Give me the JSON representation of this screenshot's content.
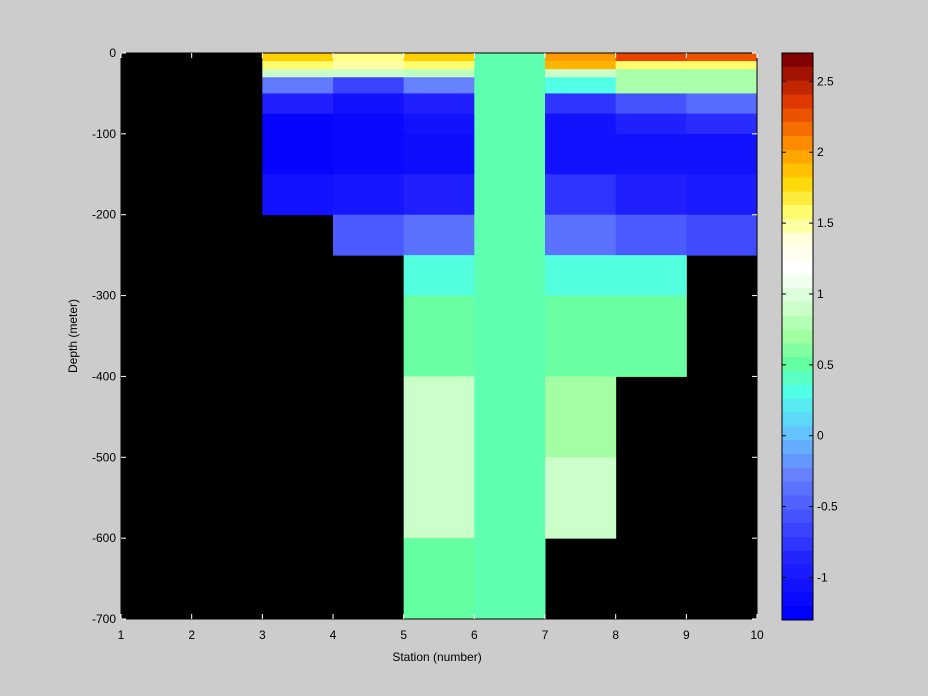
{
  "chart_data": {
    "type": "heatmap",
    "title": "",
    "xlabel": "Station (number)",
    "ylabel": "Depth (meter)",
    "xlim": [
      1,
      10
    ],
    "ylim": [
      -700,
      0
    ],
    "xticks": [
      1,
      2,
      3,
      4,
      5,
      6,
      7,
      8,
      9,
      10
    ],
    "yticks": [
      0,
      -100,
      -200,
      -300,
      -400,
      -500,
      -600,
      -700
    ],
    "background_color": "#000000",
    "grid": false,
    "colorbar": {
      "colormap": "jet-with-white-center",
      "range": [
        -1.3,
        2.7
      ],
      "ticks": [
        -1,
        -0.5,
        0,
        0.5,
        1,
        1.5,
        2,
        2.5
      ],
      "position": "right"
    },
    "cells": [
      {
        "x": [
          3,
          4
        ],
        "y": [
          -10,
          0
        ],
        "value": 1.85
      },
      {
        "x": [
          3,
          4
        ],
        "y": [
          -20,
          -10
        ],
        "value": 1.6
      },
      {
        "x": [
          3,
          4
        ],
        "y": [
          -30,
          -20
        ],
        "value": 0.9
      },
      {
        "x": [
          3,
          4
        ],
        "y": [
          -50,
          -30
        ],
        "value": -0.35
      },
      {
        "x": [
          3,
          4
        ],
        "y": [
          -75,
          -50
        ],
        "value": -0.95
      },
      {
        "x": [
          3,
          4
        ],
        "y": [
          -150,
          -75
        ],
        "value": -1.25
      },
      {
        "x": [
          3,
          4
        ],
        "y": [
          -200,
          -150
        ],
        "value": -1.1
      },
      {
        "x": [
          4,
          5
        ],
        "y": [
          -10,
          0
        ],
        "value": 1.55
      },
      {
        "x": [
          4,
          5
        ],
        "y": [
          -20,
          -10
        ],
        "value": 1.5
      },
      {
        "x": [
          4,
          5
        ],
        "y": [
          -30,
          -20
        ],
        "value": 0.9
      },
      {
        "x": [
          4,
          5
        ],
        "y": [
          -50,
          -30
        ],
        "value": -0.7
      },
      {
        "x": [
          4,
          5
        ],
        "y": [
          -75,
          -50
        ],
        "value": -1.1
      },
      {
        "x": [
          4,
          5
        ],
        "y": [
          -150,
          -75
        ],
        "value": -1.2
      },
      {
        "x": [
          4,
          5
        ],
        "y": [
          -200,
          -150
        ],
        "value": -1.05
      },
      {
        "x": [
          4,
          5
        ],
        "y": [
          -250,
          -200
        ],
        "value": -0.55
      },
      {
        "x": [
          5,
          6
        ],
        "y": [
          -10,
          0
        ],
        "value": 1.85
      },
      {
        "x": [
          5,
          6
        ],
        "y": [
          -20,
          -10
        ],
        "value": 1.6
      },
      {
        "x": [
          5,
          6
        ],
        "y": [
          -30,
          -20
        ],
        "value": 0.85
      },
      {
        "x": [
          5,
          6
        ],
        "y": [
          -50,
          -30
        ],
        "value": -0.3
      },
      {
        "x": [
          5,
          6
        ],
        "y": [
          -75,
          -50
        ],
        "value": -0.95
      },
      {
        "x": [
          5,
          6
        ],
        "y": [
          -100,
          -75
        ],
        "value": -1.1
      },
      {
        "x": [
          5,
          6
        ],
        "y": [
          -150,
          -100
        ],
        "value": -1.15
      },
      {
        "x": [
          5,
          6
        ],
        "y": [
          -200,
          -150
        ],
        "value": -0.95
      },
      {
        "x": [
          5,
          6
        ],
        "y": [
          -250,
          -200
        ],
        "value": -0.4
      },
      {
        "x": [
          5,
          6
        ],
        "y": [
          -300,
          -250
        ],
        "value": 0.32
      },
      {
        "x": [
          5,
          6
        ],
        "y": [
          -400,
          -300
        ],
        "value": 0.52
      },
      {
        "x": [
          5,
          6
        ],
        "y": [
          -600,
          -400
        ],
        "value": 0.9
      },
      {
        "x": [
          5,
          6
        ],
        "y": [
          -700,
          -600
        ],
        "value": 0.5
      },
      {
        "x": [
          6,
          7
        ],
        "y": [
          -700,
          0
        ],
        "value": 0.45
      },
      {
        "x": [
          7,
          8
        ],
        "y": [
          -10,
          0
        ],
        "value": 2.05
      },
      {
        "x": [
          7,
          8
        ],
        "y": [
          -20,
          -10
        ],
        "value": 1.95
      },
      {
        "x": [
          7,
          8
        ],
        "y": [
          -30,
          -20
        ],
        "value": 0.9
      },
      {
        "x": [
          7,
          8
        ],
        "y": [
          -50,
          -30
        ],
        "value": 0.3
      },
      {
        "x": [
          7,
          8
        ],
        "y": [
          -75,
          -50
        ],
        "value": -0.8
      },
      {
        "x": [
          7,
          8
        ],
        "y": [
          -100,
          -75
        ],
        "value": -1.1
      },
      {
        "x": [
          7,
          8
        ],
        "y": [
          -150,
          -100
        ],
        "value": -1.1
      },
      {
        "x": [
          7,
          8
        ],
        "y": [
          -200,
          -150
        ],
        "value": -0.8
      },
      {
        "x": [
          7,
          8
        ],
        "y": [
          -250,
          -200
        ],
        "value": -0.4
      },
      {
        "x": [
          7,
          8
        ],
        "y": [
          -300,
          -250
        ],
        "value": 0.32
      },
      {
        "x": [
          7,
          8
        ],
        "y": [
          -400,
          -300
        ],
        "value": 0.52
      },
      {
        "x": [
          7,
          8
        ],
        "y": [
          -500,
          -400
        ],
        "value": 0.72
      },
      {
        "x": [
          7,
          8
        ],
        "y": [
          -600,
          -500
        ],
        "value": 0.9
      },
      {
        "x": [
          8,
          9
        ],
        "y": [
          -10,
          0
        ],
        "value": 2.35
      },
      {
        "x": [
          8,
          9
        ],
        "y": [
          -20,
          -10
        ],
        "value": 1.6
      },
      {
        "x": [
          8,
          9
        ],
        "y": [
          -50,
          -20
        ],
        "value": 0.75
      },
      {
        "x": [
          8,
          9
        ],
        "y": [
          -75,
          -50
        ],
        "value": -0.6
      },
      {
        "x": [
          8,
          9
        ],
        "y": [
          -100,
          -75
        ],
        "value": -0.95
      },
      {
        "x": [
          8,
          9
        ],
        "y": [
          -150,
          -100
        ],
        "value": -1.1
      },
      {
        "x": [
          8,
          9
        ],
        "y": [
          -200,
          -150
        ],
        "value": -0.95
      },
      {
        "x": [
          8,
          9
        ],
        "y": [
          -250,
          -200
        ],
        "value": -0.55
      },
      {
        "x": [
          8,
          9
        ],
        "y": [
          -300,
          -250
        ],
        "value": 0.32
      },
      {
        "x": [
          8,
          9
        ],
        "y": [
          -400,
          -300
        ],
        "value": 0.52
      },
      {
        "x": [
          9,
          10
        ],
        "y": [
          -10,
          0
        ],
        "value": 2.3
      },
      {
        "x": [
          9,
          10
        ],
        "y": [
          -20,
          -10
        ],
        "value": 1.6
      },
      {
        "x": [
          9,
          10
        ],
        "y": [
          -50,
          -20
        ],
        "value": 0.75
      },
      {
        "x": [
          9,
          10
        ],
        "y": [
          -75,
          -50
        ],
        "value": -0.45
      },
      {
        "x": [
          9,
          10
        ],
        "y": [
          -100,
          -75
        ],
        "value": -0.85
      },
      {
        "x": [
          9,
          10
        ],
        "y": [
          -150,
          -100
        ],
        "value": -1.1
      },
      {
        "x": [
          9,
          10
        ],
        "y": [
          -200,
          -150
        ],
        "value": -1.0
      },
      {
        "x": [
          9,
          10
        ],
        "y": [
          -250,
          -200
        ],
        "value": -0.65
      }
    ]
  }
}
